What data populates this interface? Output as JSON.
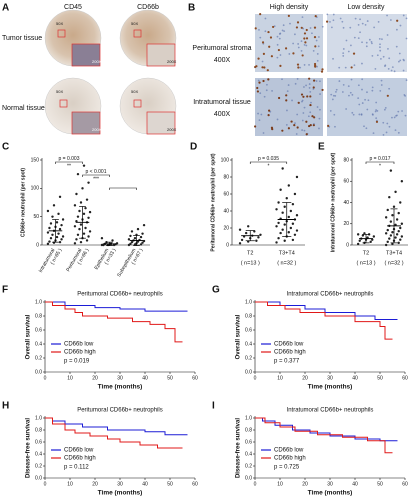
{
  "panels": {
    "A": {
      "label": "A",
      "columns": [
        "CD45",
        "CD66b"
      ],
      "rows": [
        "Tumor tissue",
        "Normal tissue"
      ],
      "magnifications": [
        "50X",
        "200X"
      ]
    },
    "B": {
      "label": "B",
      "columns": [
        "High density",
        "Low density"
      ],
      "rows": [
        {
          "name": "Peritumoral stroma",
          "magnification": "400X"
        },
        {
          "name": "Intratumoral tissue",
          "magnification": "400X"
        }
      ]
    }
  },
  "chart_data": [
    {
      "type": "strip",
      "panel": "C",
      "y_label": "CD66b+ neutrophil (per spot)",
      "categories": [
        "Intratumoral",
        "Peritumoral",
        "Epithelium",
        "Subepithelium"
      ],
      "category_notes": [
        "( n=65 )",
        "( n=66 )",
        "( n=33 )",
        "( n=67 )"
      ],
      "values": [
        [
          2,
          4,
          5,
          6,
          8,
          10,
          12,
          14,
          15,
          18,
          20,
          22,
          25,
          28,
          30,
          32,
          35,
          38,
          40,
          45,
          50,
          55,
          60,
          70,
          85
        ],
        [
          3,
          5,
          8,
          10,
          12,
          15,
          18,
          20,
          24,
          28,
          30,
          33,
          36,
          40,
          42,
          45,
          48,
          50,
          55,
          58,
          60,
          65,
          70,
          75,
          80,
          90,
          100,
          110,
          125,
          140
        ],
        [
          0,
          0,
          0,
          0,
          1,
          1,
          2,
          2,
          3,
          5,
          8,
          12
        ],
        [
          0,
          1,
          1,
          2,
          3,
          4,
          5,
          6,
          7,
          8,
          9,
          10,
          12,
          14,
          16,
          18,
          20,
          24,
          28,
          35
        ]
      ],
      "means": [
        25,
        40,
        2,
        8
      ],
      "sds": [
        20,
        28,
        3,
        9
      ],
      "ylim": [
        0,
        150
      ],
      "yticks": [
        0,
        50,
        100,
        150
      ],
      "color": "#222222",
      "comparisons": [
        {
          "between": [
            "Intratumoral",
            "Peritumoral"
          ],
          "p": "p = 0.003",
          "stars": "**"
        },
        {
          "between": [
            "Peritumoral",
            "Epithelium"
          ],
          "p": "p < 0.001",
          "stars": "***"
        },
        {
          "between": [
            "Epithelium",
            "Subepithelium"
          ]
        }
      ]
    },
    {
      "type": "strip",
      "panel": "D",
      "y_label": "Peritumoral CD66b+ neutrophil (per spot)",
      "categories": [
        "T2",
        "T3+T4"
      ],
      "category_notes": [
        "( n=13 )",
        "( n=32 )"
      ],
      "values": [
        [
          2,
          4,
          5,
          6,
          8,
          9,
          10,
          11,
          12,
          14,
          16,
          18,
          22
        ],
        [
          3,
          5,
          6,
          8,
          10,
          12,
          14,
          15,
          17,
          18,
          20,
          22,
          24,
          25,
          26,
          28,
          30,
          31,
          33,
          35,
          38,
          40,
          42,
          45,
          48,
          50,
          55,
          60,
          65,
          70,
          80,
          90
        ]
      ],
      "means": [
        11,
        30
      ],
      "sds": [
        6,
        20
      ],
      "ylim": [
        0,
        100
      ],
      "yticks": [
        0,
        20,
        40,
        60,
        80,
        100
      ],
      "color": "#222222",
      "comparisons": [
        {
          "between": [
            "T2",
            "T3+T4"
          ],
          "p": "p = 0.035",
          "stars": "*"
        }
      ]
    },
    {
      "type": "strip",
      "panel": "E",
      "y_label": "Intratumoral CD66b+ neutrophil (per spot)",
      "categories": [
        "T2",
        "T3+T4"
      ],
      "category_notes": [
        "( n=13 )",
        "( n=32 )"
      ],
      "values": [
        [
          1,
          2,
          3,
          4,
          5,
          5,
          6,
          7,
          8,
          9,
          10,
          10,
          11
        ],
        [
          0,
          1,
          2,
          3,
          4,
          5,
          6,
          7,
          8,
          9,
          10,
          11,
          12,
          13,
          14,
          15,
          16,
          18,
          19,
          20,
          22,
          24,
          26,
          28,
          30,
          33,
          36,
          40,
          45,
          50,
          60,
          70
        ]
      ],
      "means": [
        6,
        18
      ],
      "sds": [
        4,
        16
      ],
      "ylim": [
        0,
        80
      ],
      "yticks": [
        0,
        20,
        40,
        60,
        80
      ],
      "color": "#222222",
      "comparisons": [
        {
          "between": [
            "T2",
            "T3+T4"
          ],
          "p": "p = 0.017",
          "stars": "*"
        }
      ]
    },
    {
      "type": "line",
      "panel": "F",
      "title": "Peritumoral CD66b+ neutrophils",
      "x_label": "Time (months)",
      "y_label": "Overall survival",
      "xlim": [
        0,
        60
      ],
      "xticks": [
        0,
        10,
        20,
        30,
        40,
        50,
        60
      ],
      "ylim": [
        0,
        1
      ],
      "yticks": [
        {
          "value": 0,
          "label": "0.0"
        },
        {
          "value": 0.2,
          "label": "0.2"
        },
        {
          "value": 0.4,
          "label": "0.4"
        },
        {
          "value": 0.6,
          "label": "0.6"
        },
        {
          "value": 0.8,
          "label": "0.8"
        },
        {
          "value": 1,
          "label": "1.0"
        }
      ],
      "legend": "lower-left",
      "p": "p = 0.019",
      "series": [
        {
          "name": "CD66b low",
          "color": "#1c1cd6",
          "x": [
            0,
            8,
            8,
            20,
            20,
            30,
            30,
            40,
            40,
            57
          ],
          "values": [
            1,
            1,
            0.95,
            0.95,
            0.92,
            0.92,
            0.9,
            0.9,
            0.87,
            0.87
          ]
        },
        {
          "name": "CD66b high",
          "color": "#e01818",
          "x": [
            0,
            3,
            3,
            8,
            8,
            12,
            12,
            15,
            15,
            25,
            25,
            35,
            35,
            42,
            42,
            48,
            48,
            52,
            52,
            55
          ],
          "values": [
            1,
            1,
            0.95,
            0.95,
            0.9,
            0.9,
            0.85,
            0.85,
            0.8,
            0.8,
            0.77,
            0.77,
            0.72,
            0.72,
            0.68,
            0.68,
            0.62,
            0.62,
            0.43,
            0.43
          ]
        }
      ]
    },
    {
      "type": "line",
      "panel": "G",
      "title": "Intratumoral CD66b+ neutrophils",
      "x_label": "Time (months)",
      "y_label": "Overall survival",
      "xlim": [
        0,
        60
      ],
      "xticks": [
        0,
        10,
        20,
        30,
        40,
        50,
        60
      ],
      "ylim": [
        0,
        1
      ],
      "yticks": [
        {
          "value": 0,
          "label": "0.0"
        },
        {
          "value": 0.2,
          "label": "0.2"
        },
        {
          "value": 0.4,
          "label": "0.4"
        },
        {
          "value": 0.6,
          "label": "0.6"
        },
        {
          "value": 0.8,
          "label": "0.8"
        },
        {
          "value": 1,
          "label": "1.0"
        }
      ],
      "legend": "lower-left",
      "p": "p = 0.377",
      "series": [
        {
          "name": "CD66b low",
          "color": "#1c1cd6",
          "x": [
            0,
            10,
            10,
            20,
            20,
            28,
            28,
            40,
            40,
            48,
            48,
            57
          ],
          "values": [
            1,
            1,
            0.95,
            0.95,
            0.9,
            0.9,
            0.85,
            0.85,
            0.8,
            0.8,
            0.75,
            0.75
          ]
        },
        {
          "name": "CD66b high",
          "color": "#e01818",
          "x": [
            0,
            5,
            5,
            12,
            12,
            18,
            18,
            28,
            28,
            40,
            40,
            50,
            50,
            52,
            52,
            55
          ],
          "values": [
            1,
            1,
            0.95,
            0.95,
            0.9,
            0.9,
            0.85,
            0.85,
            0.8,
            0.8,
            0.72,
            0.72,
            0.65,
            0.65,
            0.47,
            0.47
          ]
        }
      ]
    },
    {
      "type": "line",
      "panel": "H",
      "title": "Peritumoral CD66b+ neutrophils",
      "x_label": "Time (months)",
      "y_label": "Disease-free survival",
      "xlim": [
        0,
        60
      ],
      "xticks": [
        0,
        10,
        20,
        30,
        40,
        50,
        60
      ],
      "ylim": [
        0,
        1
      ],
      "yticks": [
        {
          "value": 0,
          "label": "0.0"
        },
        {
          "value": 0.2,
          "label": "0.2"
        },
        {
          "value": 0.4,
          "label": "0.4"
        },
        {
          "value": 0.6,
          "label": "0.6"
        },
        {
          "value": 0.8,
          "label": "0.8"
        },
        {
          "value": 1,
          "label": "1.0"
        }
      ],
      "legend": "lower-left",
      "p": "p = 0.112",
      "series": [
        {
          "name": "CD66b low",
          "color": "#1c1cd6",
          "x": [
            0,
            3,
            3,
            8,
            8,
            15,
            15,
            25,
            25,
            40,
            40,
            48,
            48,
            57
          ],
          "values": [
            1,
            1,
            0.95,
            0.95,
            0.9,
            0.9,
            0.85,
            0.85,
            0.8,
            0.8,
            0.77,
            0.77,
            0.72,
            0.72
          ]
        },
        {
          "name": "CD66b high",
          "color": "#e01818",
          "x": [
            0,
            3,
            3,
            8,
            8,
            12,
            12,
            18,
            18,
            25,
            25,
            30,
            30,
            38,
            38,
            45,
            45,
            55
          ],
          "values": [
            1,
            1,
            0.9,
            0.9,
            0.8,
            0.8,
            0.75,
            0.75,
            0.7,
            0.7,
            0.65,
            0.65,
            0.6,
            0.6,
            0.55,
            0.55,
            0.5,
            0.5
          ]
        }
      ]
    },
    {
      "type": "line",
      "panel": "I",
      "title": "Intratumoral CD66b+ neutrophils",
      "x_label": "Time (months)",
      "y_label": "Disease-free survival",
      "xlim": [
        0,
        60
      ],
      "xticks": [
        0,
        10,
        20,
        30,
        40,
        50,
        60
      ],
      "ylim": [
        0,
        1
      ],
      "yticks": [
        {
          "value": 0,
          "label": "0.0"
        },
        {
          "value": 0.2,
          "label": "0.2"
        },
        {
          "value": 0.4,
          "label": "0.4"
        },
        {
          "value": 0.6,
          "label": "0.6"
        },
        {
          "value": 0.8,
          "label": "0.8"
        },
        {
          "value": 1,
          "label": "1.0"
        }
      ],
      "legend": "lower-left",
      "p": "p = 0.725",
      "series": [
        {
          "name": "CD66b low",
          "color": "#1c1cd6",
          "x": [
            0,
            3,
            3,
            8,
            8,
            15,
            15,
            22,
            22,
            30,
            30,
            40,
            40,
            50,
            50,
            57
          ],
          "values": [
            1,
            1,
            0.95,
            0.95,
            0.88,
            0.88,
            0.8,
            0.8,
            0.75,
            0.75,
            0.7,
            0.7,
            0.65,
            0.65,
            0.62,
            0.62
          ]
        },
        {
          "name": "CD66b high",
          "color": "#e01818",
          "x": [
            0,
            4,
            4,
            10,
            10,
            16,
            16,
            25,
            25,
            35,
            35,
            45,
            45,
            52,
            52,
            55
          ],
          "values": [
            1,
            1,
            0.92,
            0.92,
            0.85,
            0.85,
            0.78,
            0.78,
            0.72,
            0.72,
            0.68,
            0.68,
            0.62,
            0.62,
            0.42,
            0.42
          ]
        }
      ]
    }
  ]
}
